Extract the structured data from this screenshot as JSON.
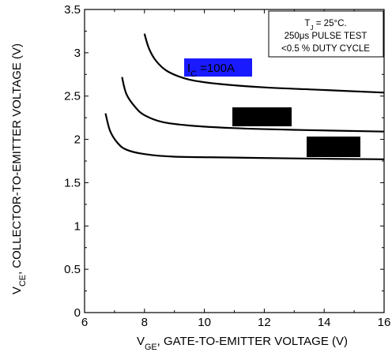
{
  "chart_data": {
    "type": "line",
    "xlabel_main": "V",
    "xlabel_sub": "GE",
    "xlabel_rest": ", GATE-TO-EMITTER VOLTAGE (V)",
    "ylabel_main": "V",
    "ylabel_sub": "CE",
    "ylabel_rest": ", COLLECTOR-TO-EMITTER  VOLTAGE (V)",
    "xlim": [
      6,
      16
    ],
    "ylim": [
      0,
      3.5
    ],
    "x_ticks": [
      6,
      8,
      10,
      12,
      14,
      16
    ],
    "x_tick_labels": [
      "6",
      "8",
      "10",
      "12",
      "14",
      "16"
    ],
    "y_ticks": [
      0,
      0.5,
      1,
      1.5,
      2,
      2.5,
      3,
      3.5
    ],
    "y_tick_labels": [
      "0",
      "0.5",
      "1",
      "1.5",
      "2",
      "2.5",
      "3",
      "3.5"
    ],
    "grid": false,
    "series": [
      {
        "label_main": "I",
        "label_sub": "C",
        "label_rest": " =100A",
        "x": [
          8.0,
          8.15,
          8.4,
          8.8,
          9.5,
          10.5,
          12,
          14,
          16
        ],
        "y": [
          3.22,
          3.05,
          2.9,
          2.78,
          2.69,
          2.64,
          2.6,
          2.57,
          2.54
        ]
      },
      {
        "x": [
          7.25,
          7.4,
          7.7,
          8.0,
          8.6,
          9.5,
          11,
          13,
          16
        ],
        "y": [
          2.72,
          2.52,
          2.37,
          2.28,
          2.2,
          2.16,
          2.13,
          2.11,
          2.09
        ]
      },
      {
        "x": [
          6.7,
          6.85,
          7.1,
          7.4,
          8.0,
          9.0,
          11,
          13,
          16
        ],
        "y": [
          2.3,
          2.1,
          1.96,
          1.88,
          1.83,
          1.8,
          1.79,
          1.78,
          1.77
        ]
      }
    ],
    "annotation_lines": [
      {
        "main": "T",
        "sub": "J",
        "rest": " = 25°C."
      },
      {
        "main": "250μs PULSE TEST",
        "sub": "",
        "rest": ""
      },
      {
        "main": "<0.5 % DUTY CYCLE",
        "sub": "",
        "rest": ""
      }
    ],
    "colors": {
      "line": "#000000",
      "label_bg": "#1a1aff",
      "redaction": "#000000"
    }
  }
}
